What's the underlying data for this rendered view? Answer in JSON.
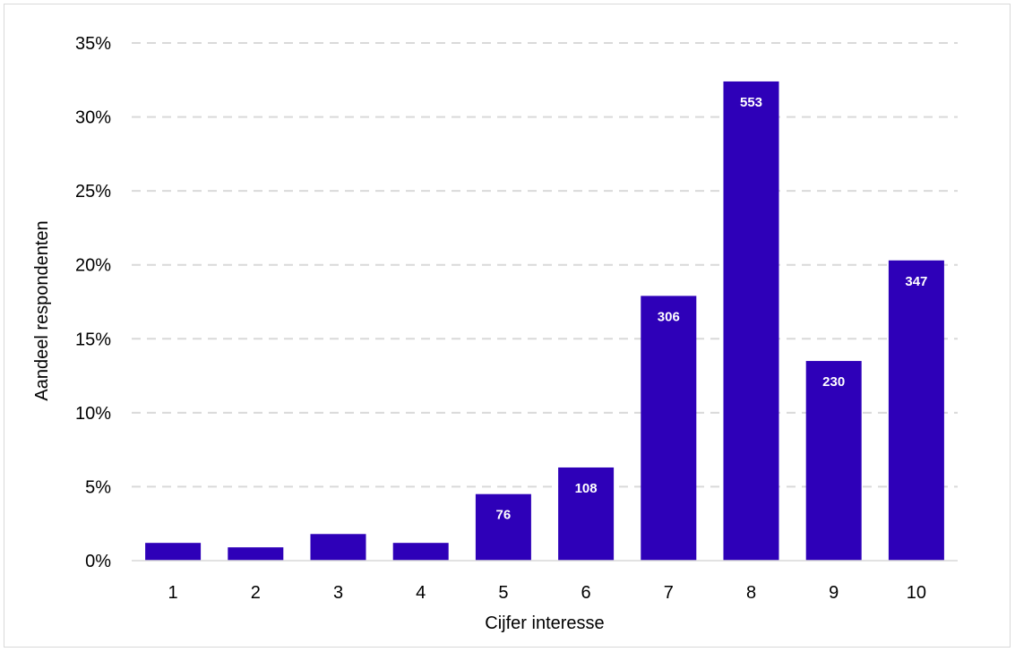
{
  "chart_data": {
    "type": "bar",
    "xlabel": "Cijfer interesse",
    "ylabel": "Aandeel respondenten",
    "categories": [
      "1",
      "2",
      "3",
      "4",
      "5",
      "6",
      "7",
      "8",
      "9",
      "10"
    ],
    "values": [
      1.2,
      0.9,
      1.8,
      1.2,
      4.5,
      6.3,
      17.9,
      32.4,
      13.5,
      20.3
    ],
    "data_labels": [
      "",
      "",
      "",
      "",
      "76",
      "108",
      "306",
      "553",
      "230",
      "347"
    ],
    "ylim": [
      0,
      35
    ],
    "yticks": [
      "0%",
      "5%",
      "10%",
      "15%",
      "20%",
      "25%",
      "30%",
      "35%"
    ],
    "ytick_values": [
      0,
      5,
      10,
      15,
      20,
      25,
      30,
      35
    ],
    "grid": "horizontal-dashed",
    "bar_color": "#2e00b8"
  }
}
